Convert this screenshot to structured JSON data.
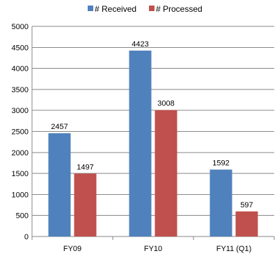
{
  "chart_data": {
    "type": "bar",
    "categories": [
      "FY09",
      "FY10",
      "FY11 (Q1)"
    ],
    "series": [
      {
        "name": "# Received",
        "values": [
          2457,
          4423,
          1592
        ],
        "color": "#4f81bd"
      },
      {
        "name": "# Processed",
        "values": [
          1497,
          3008,
          597
        ],
        "color": "#c0504d"
      }
    ],
    "title": "",
    "xlabel": "",
    "ylabel": "",
    "ylim": [
      0,
      5000
    ],
    "yticks": [
      0,
      500,
      1000,
      1500,
      2000,
      2500,
      3000,
      3500,
      4000,
      4500,
      5000
    ],
    "grid": true,
    "legend_position": "top-center",
    "data_labels": true
  }
}
